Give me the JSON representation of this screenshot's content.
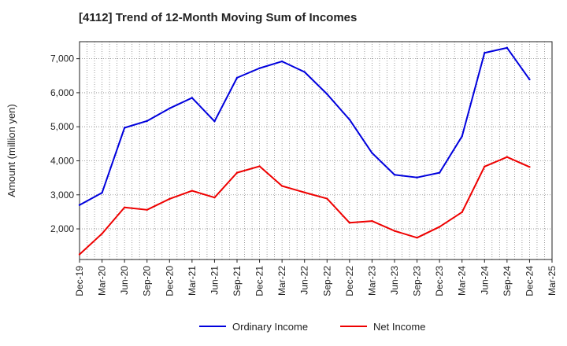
{
  "chart_data": {
    "type": "line",
    "title": "[4112]  Trend of 12-Month Moving Sum of Incomes",
    "xlabel": "",
    "ylabel": "Amount (million yen)",
    "ylim": [
      1100,
      7500
    ],
    "yticks": [
      2000,
      3000,
      4000,
      5000,
      6000,
      7000
    ],
    "ytick_labels": [
      "2,000",
      "3,000",
      "4,000",
      "5,000",
      "6,000",
      "7,000"
    ],
    "categories": [
      "Dec-19",
      "Mar-20",
      "Jun-20",
      "Sep-20",
      "Dec-20",
      "Mar-21",
      "Jun-21",
      "Sep-21",
      "Dec-21",
      "Mar-22",
      "Jun-22",
      "Sep-22",
      "Dec-22",
      "Mar-23",
      "Jun-23",
      "Sep-23",
      "Dec-23",
      "Mar-24",
      "Jun-24",
      "Sep-24",
      "Dec-24",
      "Mar-25"
    ],
    "grid": true,
    "legend_position": "bottom",
    "series": [
      {
        "name": "Ordinary Income",
        "color": "#0000dd",
        "values": [
          2700,
          3060,
          4970,
          5170,
          5540,
          5850,
          5160,
          6440,
          6720,
          6920,
          6610,
          5960,
          5210,
          4230,
          3590,
          3510,
          3650,
          4720,
          7170,
          7320,
          6390,
          null
        ]
      },
      {
        "name": "Net Income",
        "color": "#ee0000",
        "values": [
          1250,
          1860,
          2630,
          2560,
          2880,
          3120,
          2920,
          3650,
          3840,
          3260,
          3070,
          2890,
          2180,
          2230,
          1940,
          1740,
          2060,
          2490,
          3830,
          4110,
          3820,
          null
        ]
      }
    ]
  }
}
